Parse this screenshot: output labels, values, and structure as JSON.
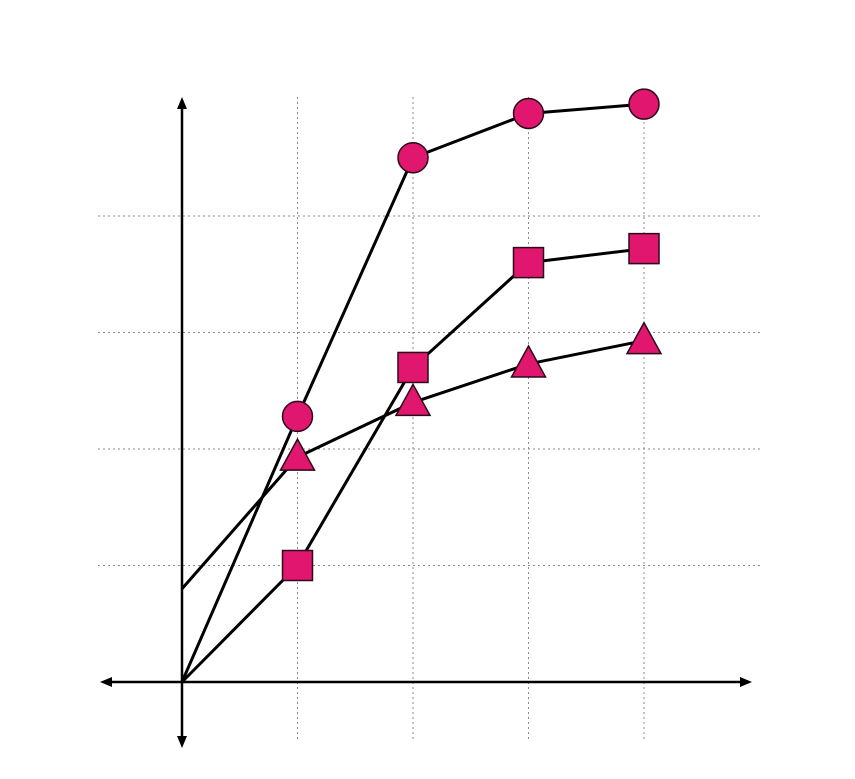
{
  "chart_data": {
    "type": "line",
    "title": "",
    "xlabel": "",
    "ylabel": "",
    "x": [
      0,
      1,
      2,
      3,
      4
    ],
    "xlim": [
      -0.72,
      4.9
    ],
    "ylim": [
      -0.5,
      5
    ],
    "grid": true,
    "axes_with_arrows": true,
    "marker_color": "#e0166f",
    "line_color": "#000000",
    "series": [
      {
        "marker": "circle",
        "values": [
          0,
          2.28,
          4.5,
          4.88,
          4.96
        ]
      },
      {
        "marker": "square",
        "values": [
          0,
          1.0,
          2.7,
          3.6,
          3.72
        ]
      },
      {
        "marker": "triangle",
        "values": [
          0.8,
          1.93,
          2.4,
          2.73,
          2.93
        ]
      }
    ]
  }
}
